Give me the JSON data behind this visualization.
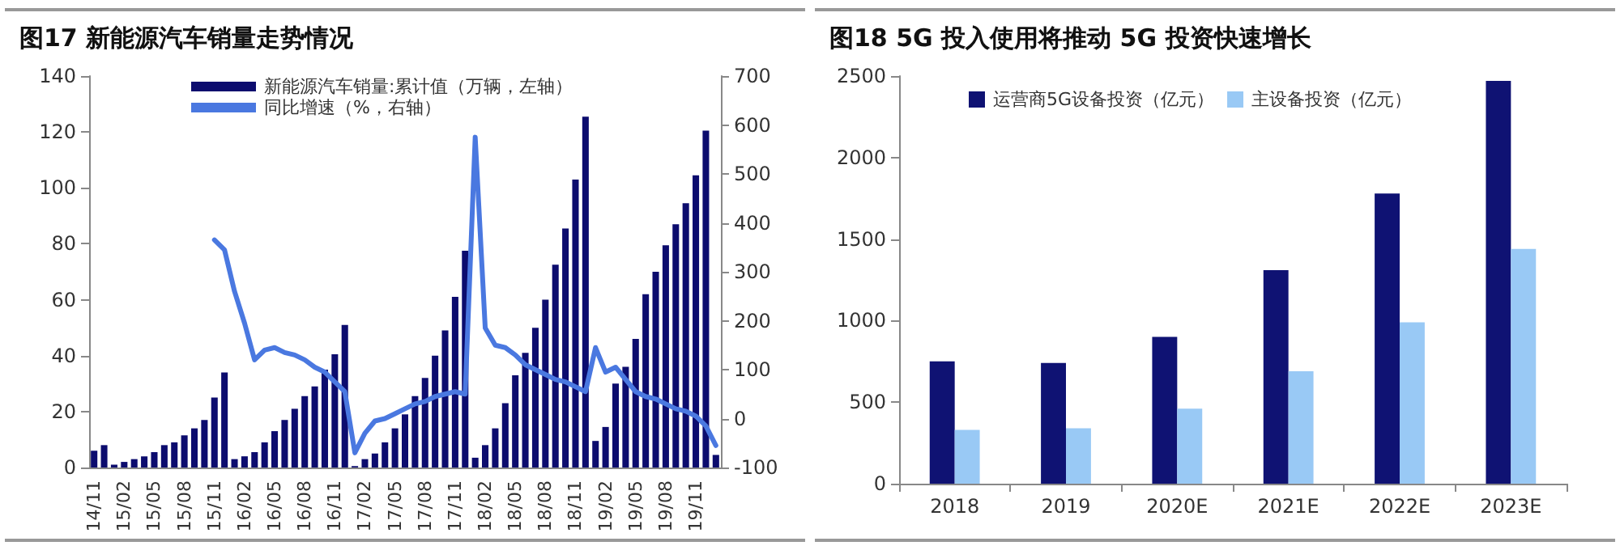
{
  "chart_data": [
    {
      "type": "bar",
      "title": "图17 新能源汽车销量走势情况",
      "categories": [
        "14/11",
        null,
        null,
        "15/02",
        null,
        null,
        "15/05",
        null,
        null,
        "15/08",
        null,
        null,
        "15/11",
        null,
        null,
        "16/02",
        null,
        null,
        "16/05",
        null,
        null,
        "16/08",
        null,
        null,
        "16/11",
        null,
        null,
        "17/02",
        null,
        null,
        "17/05",
        null,
        null,
        "17/08",
        null,
        null,
        "17/11",
        null,
        null,
        "18/02",
        null,
        null,
        "18/05",
        null,
        null,
        "18/08",
        null,
        null,
        "18/11",
        null,
        null,
        "19/02",
        null,
        null,
        "19/05",
        null,
        null,
        "19/08",
        null,
        null,
        "19/11",
        null,
        null
      ],
      "series": [
        {
          "name": "新能源汽车销量:累计值（万辆，左轴）",
          "color": "#0c0c6e",
          "values": [
            6,
            8,
            1,
            2,
            3,
            4,
            5.5,
            8,
            9,
            11.5,
            14,
            17,
            25,
            34,
            3,
            4,
            5.5,
            9,
            13,
            17,
            21,
            25.5,
            29,
            35,
            40.5,
            51,
            0.5,
            3,
            5,
            9,
            14,
            19,
            25.5,
            32,
            40,
            49,
            61,
            77.5,
            3.5,
            8,
            14,
            23,
            33,
            41,
            50,
            60,
            72.5,
            85.5,
            103,
            125.5,
            9.5,
            14.5,
            30,
            36,
            46,
            62,
            70,
            79.5,
            87,
            94.5,
            104.5,
            120.5,
            4.5
          ]
        },
        {
          "name": "同比增速（%，右轴）",
          "type": "line",
          "axis": "y2",
          "color": "#4a78e0",
          "values": [
            null,
            null,
            null,
            null,
            null,
            null,
            null,
            null,
            null,
            null,
            null,
            null,
            365,
            345,
            260,
            195,
            120,
            140,
            145,
            135,
            130,
            120,
            105,
            95,
            75,
            55,
            -70,
            -30,
            -5,
            0,
            10,
            20,
            30,
            35,
            45,
            50,
            55,
            50,
            575,
            185,
            150,
            145,
            130,
            110,
            100,
            90,
            80,
            75,
            65,
            55,
            145,
            95,
            105,
            80,
            55,
            45,
            40,
            30,
            20,
            15,
            5,
            -15,
            -55
          ]
        }
      ],
      "ylim": [
        0,
        140
      ],
      "yticks": [
        0,
        20,
        40,
        60,
        80,
        100,
        120,
        140
      ],
      "y2lim": [
        -100,
        700
      ],
      "y2ticks": [
        -100,
        0,
        100,
        200,
        300,
        400,
        500,
        600,
        700
      ],
      "legend": "top",
      "grid": false,
      "marker": "none",
      "line_style": "solid"
    },
    {
      "type": "bar",
      "title": "图18 5G 投入使用将推动 5G 投资快速增长",
      "categories": [
        "2018",
        "2019",
        "2020E",
        "2021E",
        "2022E",
        "2023E"
      ],
      "series": [
        {
          "name": "运营商5G设备投资（亿元）",
          "color": "#0f1273",
          "values": [
            750,
            740,
            900,
            1310,
            1780,
            2470
          ]
        },
        {
          "name": "主设备投资（亿元）",
          "color": "#99c9f5",
          "values": [
            330,
            340,
            460,
            690,
            990,
            1440
          ]
        }
      ],
      "ylim": [
        0,
        2500
      ],
      "yticks": [
        0,
        500,
        1000,
        1500,
        2000,
        2500
      ],
      "legend": "top",
      "grid": false
    }
  ]
}
